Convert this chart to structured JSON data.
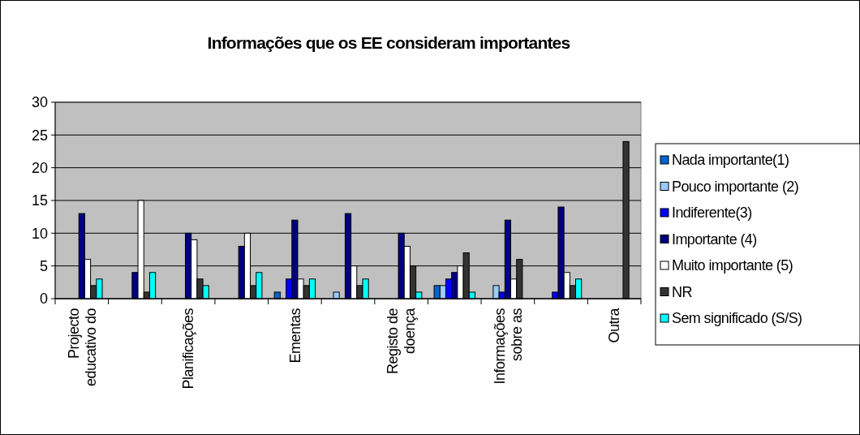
{
  "chart_data": {
    "type": "bar",
    "title": "Informações que os EE consideram importantes",
    "categories": [
      "Projecto educativo do",
      null,
      "Planificações",
      null,
      "Ementas",
      null,
      "Registo de doença",
      null,
      "Informações sobre as",
      null,
      "Outra"
    ],
    "series": [
      {
        "name": "Nada importante(1)",
        "color": "#0066cc",
        "values": [
          0,
          0,
          0,
          0,
          1,
          0,
          0,
          2,
          0,
          0,
          0
        ]
      },
      {
        "name": "Pouco importante (2)",
        "color": "#99ccff",
        "values": [
          0,
          0,
          0,
          0,
          0,
          1,
          0,
          2,
          2,
          0,
          0
        ]
      },
      {
        "name": "Indiferente(3)",
        "color": "#0000ff",
        "values": [
          0,
          0,
          0,
          0,
          3,
          0,
          0,
          3,
          1,
          1,
          0
        ]
      },
      {
        "name": "Importante (4)",
        "color": "#000080",
        "values": [
          13,
          4,
          10,
          8,
          12,
          13,
          10,
          4,
          12,
          14,
          0
        ]
      },
      {
        "name": "Muito importante (5)",
        "color": "#ffffff",
        "values": [
          6,
          15,
          9,
          10,
          3,
          5,
          8,
          5,
          3,
          4,
          0
        ]
      },
      {
        "name": "NR",
        "color": "#333333",
        "values": [
          2,
          1,
          3,
          2,
          2,
          2,
          5,
          7,
          6,
          2,
          24
        ]
      },
      {
        "name": "Sem significado (S/S)",
        "color": "#00ffff",
        "values": [
          3,
          4,
          2,
          4,
          3,
          3,
          1,
          1,
          0,
          3,
          0
        ]
      }
    ],
    "ylim": [
      0,
      30
    ],
    "yticks": [
      0,
      5,
      10,
      15,
      20,
      25,
      30
    ],
    "grid": "y",
    "legend": "right"
  }
}
